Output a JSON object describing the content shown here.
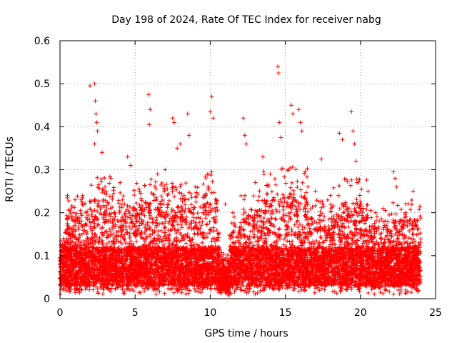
{
  "chart_data": {
    "type": "scatter",
    "title": "Day 198 of 2024, Rate Of TEC Index for receiver nabg",
    "xlabel": "GPS time / hours",
    "ylabel": "ROTI / TECUs",
    "xlim": [
      0,
      25
    ],
    "ylim": [
      0,
      0.6
    ],
    "xticks": [
      0,
      5,
      10,
      15,
      20,
      25
    ],
    "yticks": [
      0,
      0.1,
      0.2,
      0.3,
      0.4,
      0.5,
      0.6
    ],
    "xtick_labels": [
      "0",
      "5",
      "10",
      "15",
      "20",
      "25"
    ],
    "ytick_labels": [
      "0",
      "0.1",
      "0.2",
      "0.3",
      "0.4",
      "0.5",
      "0.6"
    ],
    "grid": true,
    "legend": "none",
    "marker": "+",
    "color": "#ff0000",
    "x_data_range": [
      0,
      24
    ],
    "series": [
      {
        "points": [
          [
            2.0,
            0.495
          ],
          [
            2.3,
            0.5
          ],
          [
            2.35,
            0.46
          ],
          [
            2.4,
            0.43
          ],
          [
            2.45,
            0.41
          ],
          [
            2.5,
            0.39
          ],
          [
            2.3,
            0.36
          ],
          [
            2.8,
            0.34
          ],
          [
            5.9,
            0.475
          ],
          [
            6.0,
            0.44
          ],
          [
            5.95,
            0.405
          ],
          [
            7.5,
            0.42
          ],
          [
            7.6,
            0.41
          ],
          [
            8.5,
            0.43
          ],
          [
            8.6,
            0.38
          ],
          [
            10.1,
            0.47
          ],
          [
            10.0,
            0.435
          ],
          [
            10.2,
            0.42
          ],
          [
            10.1,
            0.295
          ],
          [
            12.2,
            0.42
          ],
          [
            12.3,
            0.38
          ],
          [
            12.4,
            0.36
          ],
          [
            14.5,
            0.54
          ],
          [
            14.55,
            0.525
          ],
          [
            14.6,
            0.41
          ],
          [
            14.7,
            0.375
          ],
          [
            15.4,
            0.45
          ],
          [
            15.5,
            0.43
          ],
          [
            15.9,
            0.44
          ],
          [
            16.0,
            0.41
          ],
          [
            16.1,
            0.39
          ],
          [
            17.4,
            0.325
          ],
          [
            18.6,
            0.385
          ],
          [
            18.8,
            0.37
          ],
          [
            19.4,
            0.435
          ],
          [
            19.5,
            0.39
          ],
          [
            19.6,
            0.36
          ],
          [
            19.7,
            0.32
          ],
          [
            22.2,
            0.295
          ],
          [
            22.3,
            0.28
          ],
          [
            22.4,
            0.26
          ],
          [
            23.5,
            0.25
          ],
          [
            0.5,
            0.24
          ],
          [
            1.0,
            0.23
          ],
          [
            1.5,
            0.22
          ],
          [
            3.0,
            0.26
          ],
          [
            4.0,
            0.27
          ],
          [
            4.5,
            0.33
          ],
          [
            4.7,
            0.31
          ],
          [
            6.5,
            0.29
          ],
          [
            7.0,
            0.3
          ],
          [
            7.8,
            0.35
          ],
          [
            8.0,
            0.36
          ],
          [
            9.0,
            0.26
          ],
          [
            9.7,
            0.24
          ],
          [
            11.0,
            0.22
          ],
          [
            11.5,
            0.2
          ],
          [
            13.0,
            0.27
          ],
          [
            13.5,
            0.33
          ],
          [
            14.0,
            0.29
          ],
          [
            16.5,
            0.26
          ],
          [
            17.0,
            0.25
          ],
          [
            18.0,
            0.24
          ],
          [
            20.0,
            0.22
          ],
          [
            20.5,
            0.25
          ],
          [
            21.0,
            0.2
          ],
          [
            21.5,
            0.21
          ],
          [
            23.0,
            0.2
          ]
        ]
      }
    ]
  }
}
